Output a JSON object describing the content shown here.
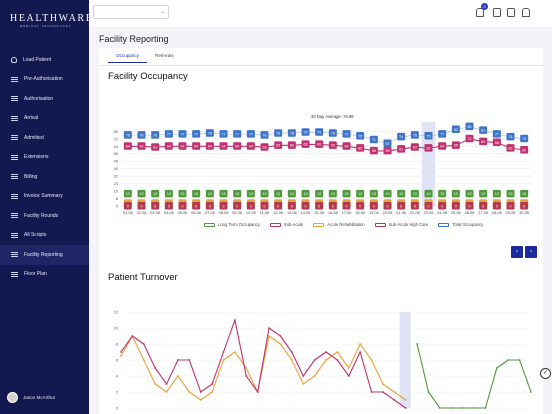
{
  "brand": {
    "main": "HEALTHWARE",
    "sub": "MEDICAL TECHNOLOGY"
  },
  "sidebar": {
    "items": [
      {
        "label": "Load Patient",
        "icon": "user-icon"
      },
      {
        "label": "Pre-Authorisation",
        "icon": "list-icon"
      },
      {
        "label": "Authorisation",
        "icon": "list-icon"
      },
      {
        "label": "Arrival",
        "icon": "list-icon"
      },
      {
        "label": "Admitted",
        "icon": "list-icon"
      },
      {
        "label": "Extensions",
        "icon": "list-icon"
      },
      {
        "label": "Billing",
        "icon": "list-icon"
      },
      {
        "label": "Invoice Summary",
        "icon": "list-icon"
      },
      {
        "label": "Facility Rounds",
        "icon": "list-icon"
      },
      {
        "label": "All Scripts",
        "icon": "list-icon"
      },
      {
        "label": "Facility Reporting",
        "icon": "list-icon"
      },
      {
        "label": "Floor Plan",
        "icon": "list-icon"
      }
    ],
    "user": "Jason McArthur"
  },
  "header": {
    "select_value": "",
    "notification_count": "0"
  },
  "page": {
    "title": "Facility Reporting",
    "tabs": [
      "Occupancy",
      "Referrals"
    ]
  },
  "occupancy": {
    "title": "Facility Occupancy",
    "avg_label": "30 Day Average: 76.86"
  },
  "turnover": {
    "title": "Patient Turnover"
  },
  "colors": {
    "sidebar": "#141850",
    "primary": "#1e2aa0",
    "green": "#4e9a3c",
    "pink": "#c0326f",
    "orange": "#e8a33a",
    "maroon": "#b23a4a",
    "blue": "#3d74c7"
  },
  "chart_data": [
    {
      "type": "bar",
      "title": "Facility Occupancy",
      "categories": [
        "01-06",
        "02-06",
        "03-06",
        "04-06",
        "05-06",
        "06-06",
        "07-06",
        "08-06",
        "09-06",
        "10-06",
        "11-06",
        "12-06",
        "13-06",
        "14-06",
        "15-06",
        "16-06",
        "17-06",
        "18-06",
        "19-06",
        "20-06",
        "21-06",
        "22-06",
        "23-06",
        "24-06",
        "25-06",
        "26-06",
        "27-06",
        "28-06",
        "29-06",
        "30-06"
      ],
      "ylim": [
        0,
        90
      ],
      "yticks": [
        0,
        8,
        16,
        24,
        32,
        40,
        48,
        56,
        64,
        72,
        80
      ],
      "series": [
        {
          "name": "Long Term Occupancy",
          "color": "#4e9a3c",
          "values": [
            13,
            13,
            13,
            13,
            13,
            13,
            13,
            13,
            13,
            13,
            13,
            13,
            13,
            13,
            13,
            13,
            13,
            13,
            13,
            13,
            13,
            13,
            13,
            13,
            13,
            13,
            13,
            13,
            13,
            13
          ]
        },
        {
          "name": "Sub-Acute",
          "color": "#c0326f",
          "values": [
            64,
            64,
            63,
            64,
            64,
            64,
            64,
            64,
            64,
            64,
            63,
            65,
            65,
            66,
            66,
            65,
            64,
            62,
            59,
            59,
            61,
            63,
            62,
            64,
            65,
            72,
            69,
            68,
            62,
            60
          ]
        },
        {
          "name": "Acute Rehabilitation",
          "color": "#e8a33a",
          "values": [
            0,
            0,
            0,
            0,
            0,
            0,
            0,
            0,
            0,
            0,
            0,
            0,
            0,
            0,
            0,
            0,
            0,
            0,
            0,
            0,
            0,
            0,
            0,
            0,
            0,
            0,
            0,
            0,
            0,
            0
          ]
        },
        {
          "name": "Sub-Acute High Care",
          "color": "#b23a4a",
          "values": [
            0,
            0,
            0,
            0,
            0,
            0,
            0,
            0,
            0,
            0,
            0,
            0,
            0,
            0,
            0,
            0,
            0,
            0,
            0,
            0,
            0,
            0,
            0,
            0,
            0,
            0,
            0,
            0,
            0,
            0
          ]
        },
        {
          "name": "Total Occupancy",
          "color": "#3d74c7",
          "values": [
            76,
            76,
            76,
            77,
            77,
            77,
            78,
            77,
            77,
            77,
            76,
            78,
            78,
            79,
            79,
            78,
            77,
            75,
            71,
            67,
            74,
            76,
            75,
            77,
            82,
            85,
            81,
            77,
            74,
            72
          ]
        }
      ],
      "top_labels": {
        "values_series": [
          76,
          76,
          76,
          77,
          77,
          77,
          78,
          77,
          77,
          77,
          76,
          78,
          78,
          79,
          79,
          78,
          77,
          75,
          71,
          67,
          74,
          76,
          75,
          77,
          82,
          85,
          81,
          77,
          74,
          72
        ]
      },
      "highlight_index": 22,
      "legend": "bottom"
    },
    {
      "type": "line",
      "title": "Patient Turnover",
      "ylim": [
        0,
        12
      ],
      "yticks": [
        0,
        2,
        4,
        6,
        8,
        10,
        12
      ],
      "series": [
        {
          "name": "",
          "color": "#e8a33a",
          "values": [
            6.5,
            9,
            6,
            3,
            2,
            4,
            2,
            1,
            2,
            6,
            7,
            5,
            2,
            9,
            8,
            6,
            3,
            4,
            6,
            7,
            5,
            8,
            6,
            3,
            2,
            1
          ]
        },
        {
          "name": "",
          "color": "#c0326f",
          "values": [
            7,
            9,
            8,
            5,
            3,
            6,
            6,
            2,
            3,
            7,
            11,
            4,
            2,
            10,
            9,
            7,
            4,
            6,
            7,
            6,
            4,
            7,
            2,
            2,
            1,
            0
          ]
        },
        {
          "name": "",
          "color": "#4e9a3c",
          "values": [
            null,
            null,
            null,
            null,
            null,
            null,
            null,
            null,
            null,
            null,
            null,
            null,
            null,
            null,
            null,
            null,
            null,
            null,
            null,
            null,
            null,
            null,
            null,
            null,
            null,
            null,
            8,
            2,
            0,
            0,
            0,
            0,
            0,
            5,
            6,
            6,
            2
          ]
        }
      ],
      "highlight_index": 25,
      "legend": "none"
    }
  ]
}
